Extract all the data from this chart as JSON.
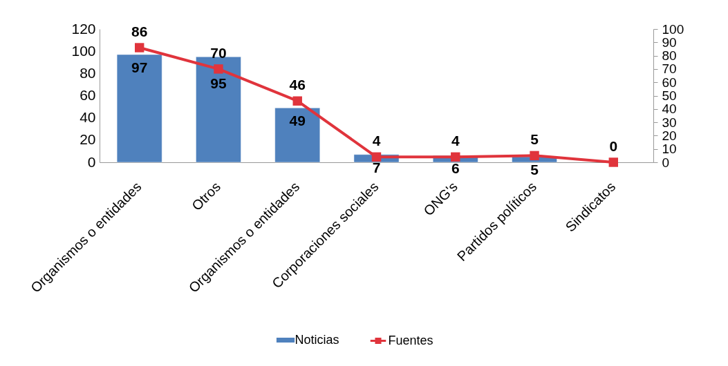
{
  "chart_data": {
    "type": "bar",
    "categories": [
      "Organismos o entidades",
      "Otros",
      "Organismos o entidades",
      "Corporaciones sociales",
      "ONG's",
      "Partidos políticos",
      "Sindicatos"
    ],
    "series": [
      {
        "name": "Noticias",
        "color": "#4f81bd",
        "values": [
          97,
          95,
          49,
          7,
          6,
          5,
          null
        ]
      },
      {
        "name": "Fuentes",
        "type": "line",
        "axis": "y2",
        "color": "#e0343c",
        "values": [
          86,
          70,
          46,
          4,
          4,
          5,
          0
        ]
      }
    ],
    "ylim": [
      0,
      120
    ],
    "yticks": [
      0,
      20,
      40,
      60,
      80,
      100,
      120
    ],
    "y2lim": [
      0,
      100
    ],
    "y2ticks": [
      0,
      10,
      20,
      30,
      40,
      50,
      60,
      70,
      80,
      90,
      100
    ],
    "marker": "square",
    "data_labels": true,
    "legend": "bottom"
  }
}
